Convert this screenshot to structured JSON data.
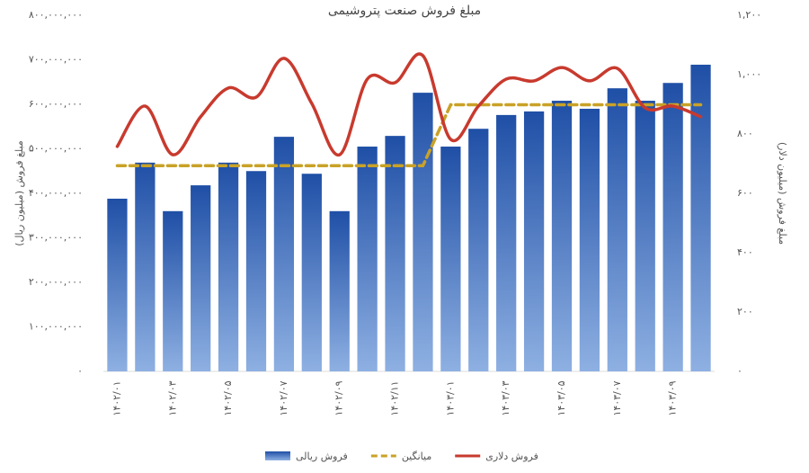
{
  "chart_data": {
    "type": "bar",
    "title": "مبلغ فروش صنعت پتروشیمی",
    "y_label": "مبلغ فروش (میلیون ریال)",
    "y2_label": "مبلغ فروش (میلیون دلار)",
    "categories": [
      "۱۴۰۲/۰۱",
      null,
      "۱۴۰۲/۰۳",
      null,
      "۱۴۰۲/۰۵",
      null,
      "۱۴۰۲/۰۷",
      null,
      "۱۴۰۲/۰۹",
      null,
      "۱۴۰۲/۱۱",
      null,
      "۱۴۰۳/۰۱",
      null,
      "۱۴۰۳/۰۳",
      null,
      "۱۴۰۳/۰۵",
      null,
      "۱۴۰۳/۰۷",
      null,
      "۱۴۰۳/۰۹",
      null
    ],
    "series": [
      {
        "name": "فروش ریالی",
        "type": "bar",
        "color": "#2a5caa",
        "values": [
          388000000,
          469000000,
          360000000,
          418000000,
          469000000,
          450000000,
          527000000,
          444000000,
          360000000,
          505000000,
          529000000,
          626000000,
          505000000,
          545000000,
          576000000,
          584000000,
          608000000,
          590000000,
          636000000,
          608000000,
          648000000,
          689000000
        ]
      },
      {
        "name": "میانگین",
        "type": "line",
        "style": "dashed",
        "color": "#c9a227",
        "values": [
          462000000,
          462000000,
          462000000,
          462000000,
          462000000,
          462000000,
          462000000,
          462000000,
          462000000,
          462000000,
          462000000,
          462000000,
          599000000,
          599000000,
          599000000,
          599000000,
          599000000,
          599000000,
          599000000,
          599000000,
          599000000,
          599000000
        ]
      },
      {
        "name": "فروش دلاری",
        "type": "line",
        "style": "smooth",
        "axis": "y2",
        "color": "#c83a2e",
        "values": [
          758,
          894,
          730,
          858,
          955,
          924,
          1055,
          903,
          730,
          985,
          973,
          1064,
          782,
          894,
          985,
          979,
          1024,
          979,
          1021,
          888,
          894,
          858
        ]
      }
    ],
    "ylim": [
      0,
      800000000
    ],
    "yticks": [
      {
        "value": 0,
        "label": "۰"
      },
      {
        "value": 100000000,
        "label": "۱۰۰,۰۰۰,۰۰۰"
      },
      {
        "value": 200000000,
        "label": "۲۰۰,۰۰۰,۰۰۰"
      },
      {
        "value": 300000000,
        "label": "۳۰۰,۰۰۰,۰۰۰"
      },
      {
        "value": 400000000,
        "label": "۴۰۰,۰۰۰,۰۰۰"
      },
      {
        "value": 500000000,
        "label": "۵۰۰,۰۰۰,۰۰۰"
      },
      {
        "value": 600000000,
        "label": "۶۰۰,۰۰۰,۰۰۰"
      },
      {
        "value": 700000000,
        "label": "۷۰۰,۰۰۰,۰۰۰"
      },
      {
        "value": 800000000,
        "label": "۸۰۰,۰۰۰,۰۰۰"
      }
    ],
    "y2lim": [
      0,
      1200
    ],
    "y2ticks": [
      {
        "value": 0,
        "label": "۰"
      },
      {
        "value": 200,
        "label": "۲۰۰"
      },
      {
        "value": 400,
        "label": "۴۰۰"
      },
      {
        "value": 600,
        "label": "۶۰۰"
      },
      {
        "value": 800,
        "label": "۸۰۰"
      },
      {
        "value": 1000,
        "label": "۱,۰۰۰"
      },
      {
        "value": 1200,
        "label": "۱,۲۰۰"
      }
    ],
    "grid": false,
    "legend": "bottom"
  }
}
